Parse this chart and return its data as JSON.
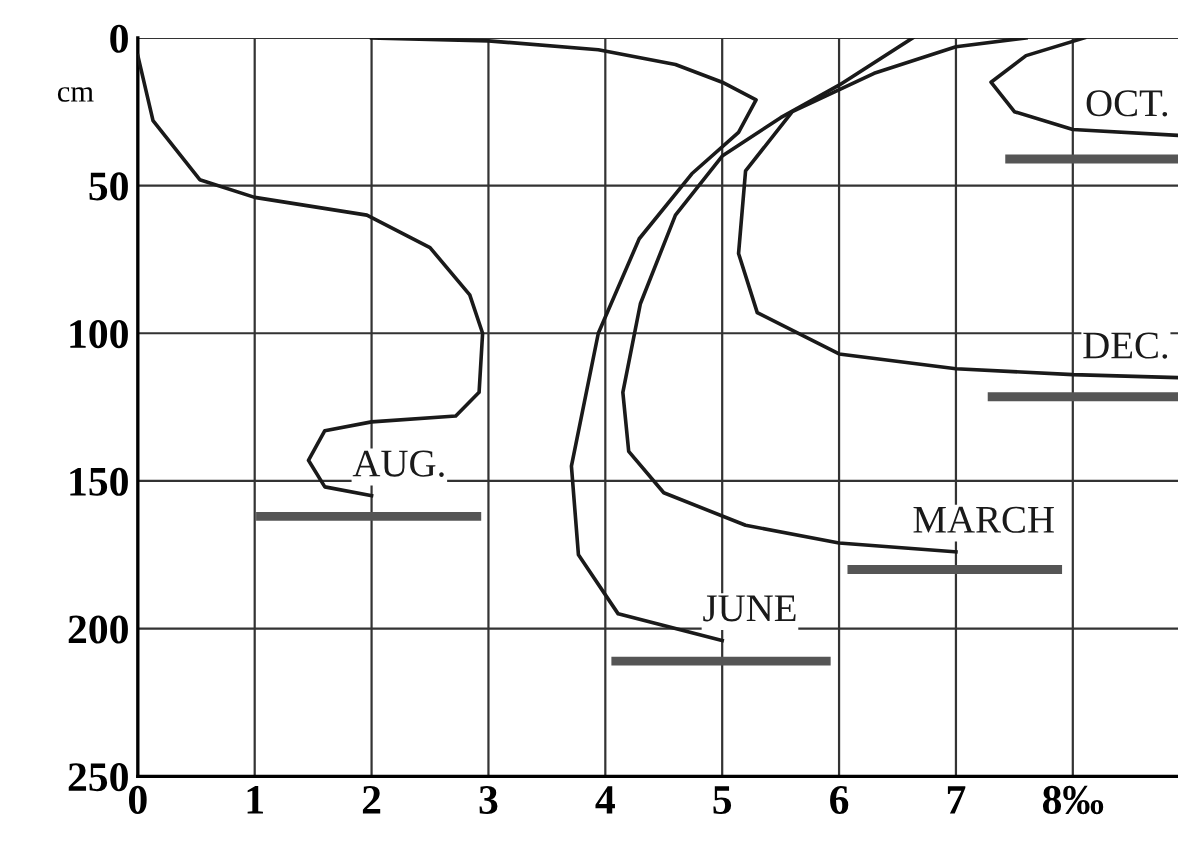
{
  "chart_data": {
    "type": "line",
    "ylabel": "cm",
    "xlim": [
      0,
      8.9
    ],
    "ylim": [
      250,
      0
    ],
    "xticks": [
      0,
      1,
      2,
      3,
      4,
      5,
      6,
      7,
      {
        "value": 8,
        "label": "8‰"
      }
    ],
    "yticks": [
      0,
      50,
      100,
      150,
      200,
      250
    ],
    "grid": true,
    "legend": false,
    "marker": "none",
    "line_style": "solid",
    "series": [
      {
        "name": "AUG.",
        "color": "#1a1a1a",
        "x": [
          0,
          0.13,
          0.53,
          1,
          1.96,
          2.5,
          2.84,
          2.95,
          2.92,
          2.72,
          2,
          1.6,
          1.46,
          1.6,
          2
        ],
        "values": [
          6,
          28,
          48,
          54,
          60,
          71,
          87,
          100,
          120,
          128,
          130,
          133,
          143,
          152,
          155
        ]
      },
      {
        "name": "JUNE",
        "color": "#1a1a1a",
        "x": [
          2,
          3,
          3.94,
          4.6,
          5,
          5.29,
          5.14,
          4.74,
          4.29,
          3.94,
          3.71,
          3.77,
          4.11,
          5
        ],
        "values": [
          0,
          1,
          4,
          9,
          15,
          21,
          32,
          46,
          68,
          100,
          145,
          175,
          195,
          204
        ]
      },
      {
        "name": "MARCH",
        "color": "#1a1a1a",
        "x": [
          6.63,
          6,
          5.5,
          5,
          4.6,
          4.3,
          4.15,
          4.2,
          4.5,
          5.2,
          6,
          7
        ],
        "values": [
          0,
          16,
          27,
          40,
          60,
          90,
          120,
          140,
          154,
          165,
          171,
          174
        ]
      },
      {
        "name": "DEC.",
        "color": "#1a1a1a",
        "x": [
          7.6,
          7,
          6.3,
          5.6,
          5.2,
          5.14,
          5.3,
          6,
          7,
          8,
          8.9
        ],
        "values": [
          0,
          3,
          12,
          25,
          45,
          73,
          93,
          107,
          112,
          114,
          115
        ]
      },
      {
        "name": "OCT.",
        "color": "#1a1a1a",
        "x": [
          8.1,
          7.6,
          7.3,
          7.5,
          8,
          8.9
        ],
        "values": [
          0,
          6,
          15,
          25,
          31,
          33
        ]
      },
      {
        "color": "#555555",
        "x": [
          1.05,
          2.9
        ],
        "values": [
          162,
          162
        ]
      },
      {
        "color": "#555555",
        "x": [
          4.09,
          5.89
        ],
        "values": [
          211,
          211
        ]
      },
      {
        "color": "#555555",
        "x": [
          6.11,
          7.87
        ],
        "values": [
          180,
          180
        ]
      },
      {
        "color": "#555555",
        "x": [
          7.31,
          8.9
        ],
        "values": [
          121.5,
          121.5
        ]
      },
      {
        "color": "#555555",
        "x": [
          7.46,
          8.9
        ],
        "values": [
          41,
          41
        ]
      }
    ]
  }
}
